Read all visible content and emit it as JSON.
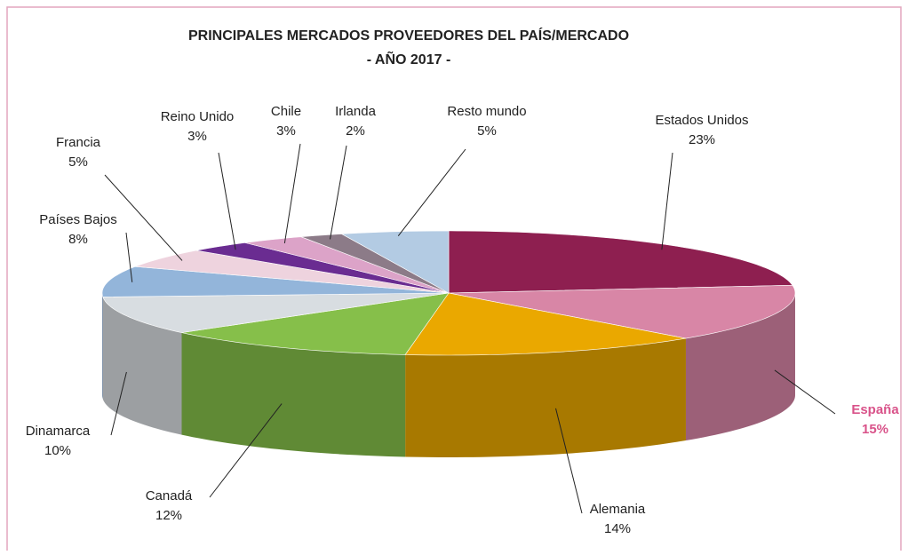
{
  "chart_data": {
    "type": "pie3d",
    "title": "PRINCIPALES MERCADOS PROVEEDORES DEL PAÍS/MERCADO",
    "subtitle": "- AÑO 2017 -",
    "categories": [
      "Estados Unidos",
      "España",
      "Alemania",
      "Canadá",
      "Dinamarca",
      "Países Bajos",
      "Francia",
      "Reino Unido",
      "Chile",
      "Irlanda",
      "Resto mundo"
    ],
    "values": [
      23,
      15,
      14,
      12,
      10,
      8,
      5,
      3,
      3,
      2,
      5
    ],
    "value_labels": [
      "23%",
      "15%",
      "14%",
      "12%",
      "10%",
      "8%",
      "5%",
      "3%",
      "3%",
      "2%",
      "5%"
    ],
    "colors": [
      "#8e1f50",
      "#d886a6",
      "#eaa800",
      "#86bf4a",
      "#d8dde1",
      "#93b5da",
      "#eed3de",
      "#6a2c91",
      "#dca3c8",
      "#8c7b88",
      "#b3cbe3"
    ],
    "highlight": "España",
    "highlight_color": "#d9538a"
  }
}
